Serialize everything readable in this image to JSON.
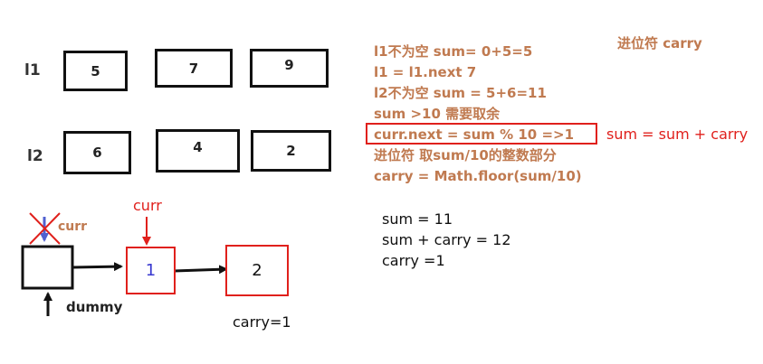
{
  "row_labels": {
    "l1": "l1",
    "l2": "l2"
  },
  "l1_values": [
    "5",
    "7",
    "9"
  ],
  "l2_values": [
    "6",
    "4",
    "2"
  ],
  "carry_title": "进位符 carry",
  "steps": [
    "l1不为空 sum= 0+5=5",
    "l1 = l1.next 7",
    "l2不为空 sum = 5+6=11",
    "sum >10 需要取余",
    "curr.next = sum % 10   =>1",
    "进位符 取sum/10的整数部分",
    "carry = Math.floor(sum/10)"
  ],
  "side_note": "sum = sum + carry",
  "calc_lines": [
    "sum = 11",
    "sum + carry = 12",
    "carry =1"
  ],
  "list": {
    "curr_old_label": "curr",
    "curr_new_label": "curr",
    "node1_value": "1",
    "node2_value": "2",
    "dummy_label": "dummy",
    "carry_note": "carry=1"
  },
  "colors": {
    "accent_red": "#e0201c",
    "note_brown": "#c07a50",
    "node_blue": "#3a3ad0"
  }
}
